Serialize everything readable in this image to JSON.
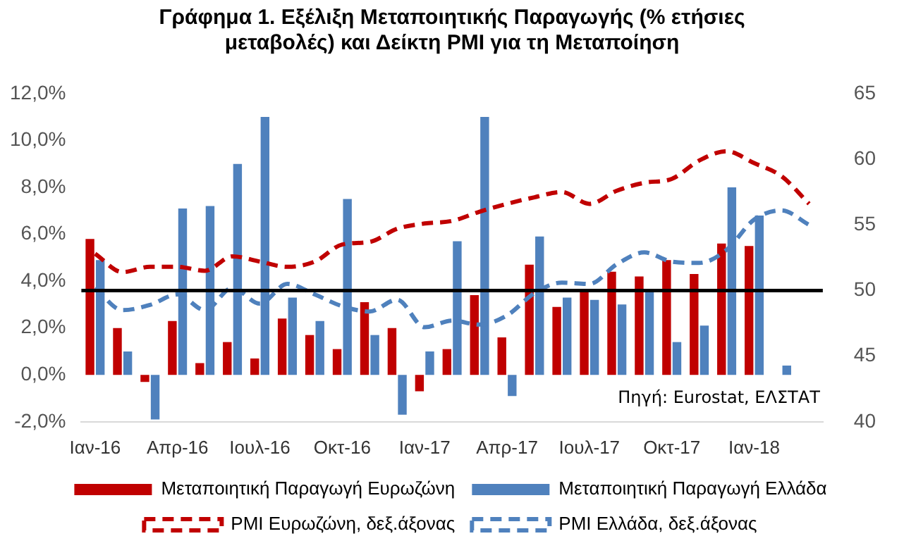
{
  "chart_data": {
    "type": "bar",
    "title": "Γράφημα 1. Εξέλιξη Μεταποιητικής Παραγωγής (% ετήσιες μεταβολές) και Δείκτη PMI για τη Μεταποίηση",
    "categories": [
      "Ιαν-16",
      null,
      null,
      "Απρ-16",
      null,
      null,
      "Ιουλ-16",
      null,
      null,
      "Οκτ-16",
      null,
      null,
      "Ιαν-17",
      null,
      null,
      "Απρ-17",
      null,
      null,
      "Ιουλ-17",
      null,
      null,
      "Οκτ-17",
      null,
      null,
      "Ιαν-18",
      null,
      null
    ],
    "series": [
      {
        "name": "Μεταποιητική Παραγωγή Ευρωζώνη",
        "color": "#c00000",
        "values": [
          5.8,
          2.0,
          -0.3,
          2.3,
          0.5,
          1.4,
          0.7,
          2.4,
          1.7,
          1.1,
          3.1,
          2.0,
          -0.7,
          1.1,
          3.4,
          1.6,
          4.7,
          2.9,
          3.6,
          4.4,
          4.2,
          4.9,
          4.3,
          5.6,
          5.5,
          null,
          null
        ]
      },
      {
        "name": "Μεταποιητική Παραγωγή Ελλάδα",
        "color": "#4f81bd",
        "values": [
          4.9,
          1.0,
          -1.9,
          7.1,
          7.2,
          9.0,
          11.0,
          3.3,
          2.3,
          7.5,
          1.7,
          -1.7,
          1.0,
          5.7,
          11.0,
          -0.9,
          5.9,
          3.3,
          3.2,
          3.0,
          3.6,
          1.4,
          2.1,
          8.0,
          6.8,
          0.4,
          null
        ]
      },
      {
        "name": "PMI Ευρωζώνη, δεξ.άξονας",
        "type": "line",
        "axis": "y2",
        "line_style": "dashed",
        "color": "#c00000",
        "values": [
          52.8,
          51.4,
          51.8,
          51.8,
          51.5,
          52.6,
          52.2,
          51.8,
          52.2,
          53.5,
          53.7,
          54.7,
          55.1,
          55.3,
          56.0,
          56.6,
          57.1,
          57.5,
          56.6,
          57.6,
          58.2,
          58.5,
          59.9,
          60.6,
          59.7,
          58.7,
          56.6
        ]
      },
      {
        "name": "PMI Ελλάδα, δεξ.άξονας",
        "type": "line",
        "axis": "y2",
        "line_style": "dashed",
        "color": "#4f81bd",
        "values": [
          50.2,
          48.5,
          48.9,
          49.7,
          48.5,
          50.2,
          49.0,
          50.5,
          49.7,
          48.8,
          48.4,
          49.3,
          47.2,
          47.7,
          47.4,
          48.1,
          49.8,
          50.6,
          50.5,
          52.0,
          52.9,
          52.2,
          52.1,
          53.1,
          55.4,
          56.1,
          55.0
        ]
      }
    ],
    "ylim": [
      -2,
      12
    ],
    "yticks": [
      {
        "value": -2,
        "label": "-2,0%"
      },
      {
        "value": 0,
        "label": "0,0%"
      },
      {
        "value": 2,
        "label": "2,0%"
      },
      {
        "value": 4,
        "label": "4,0%"
      },
      {
        "value": 6,
        "label": "6,0%"
      },
      {
        "value": 8,
        "label": "8,0%"
      },
      {
        "value": 10,
        "label": "10,0%"
      },
      {
        "value": 12,
        "label": "12,0%"
      }
    ],
    "y2lim": [
      40,
      65
    ],
    "y2ticks": [
      40,
      45,
      50,
      55,
      60,
      65
    ],
    "ref_lines": [
      {
        "axis": "y2",
        "value": 50,
        "color": "#000000"
      }
    ],
    "annotations": [
      "Πηγή: Eurostat, ΕΛΣΤΑΤ"
    ],
    "legend": "bottom",
    "marker": "none"
  }
}
